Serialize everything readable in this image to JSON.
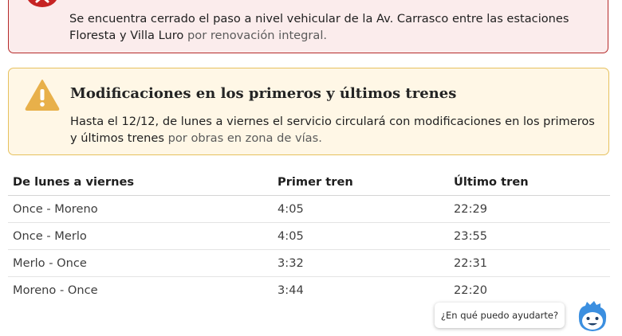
{
  "alerts": {
    "closure": {
      "icon": "close-circle-icon",
      "text_bold": "Se encuentra cerrado el paso a nivel vehicular de la Av. Carrasco entre las estaciones Floresta y Villa Luro",
      "text_rest": " por renovación integral."
    },
    "schedule": {
      "icon": "warning-triangle-icon",
      "title": "Modificaciones en los primeros y últimos trenes",
      "text_bold": "Hasta el 12/12, de lunes a viernes el servicio circulará con modificaciones en los primeros y últimos trenes",
      "text_rest": " por obras en zona de vías."
    }
  },
  "timetable": {
    "headers": [
      "De lunes a viernes",
      "Primer tren",
      "Último tren"
    ],
    "rows": [
      [
        "Once - Moreno",
        "4:05",
        "22:29"
      ],
      [
        "Once - Merlo",
        "4:05",
        "23:55"
      ],
      [
        "Merlo - Once",
        "3:32",
        "22:31"
      ],
      [
        "Moreno - Once",
        "3:44",
        "22:20"
      ]
    ]
  },
  "chat": {
    "prompt": "¿En qué puedo ayudarte?",
    "avatar_icon": "assistant-face-icon"
  },
  "colors": {
    "danger": "#c62323",
    "warning": "#e8b04a",
    "assistant": "#3b8fe0"
  }
}
